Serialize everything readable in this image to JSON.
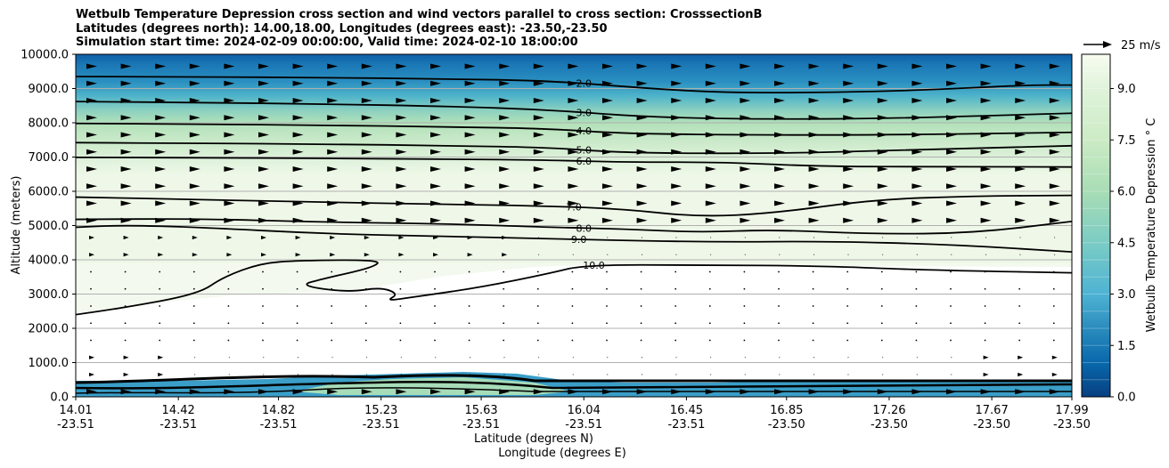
{
  "chart_data": {
    "type": "heatmap",
    "title_lines": [
      "Wetbulb Temperature Depression cross section and wind vectors parallel to cross section: CrosssectionB",
      "Latitudes (degrees north): 14.00,18.00, Longitudes (degrees east): -23.50,-23.50",
      "Simulation start time: 2024-02-09 00:00:00, Valid time: 2024-02-10 18:00:00"
    ],
    "xlabel": "Latitude (degrees N)",
    "xlabel2": "Longitude (degrees E)",
    "ylabel": "Altitude (meters)",
    "x_ticks": [
      {
        "lat": "14.01",
        "lon": "-23.51"
      },
      {
        "lat": "14.42",
        "lon": "-23.51"
      },
      {
        "lat": "14.82",
        "lon": "-23.51"
      },
      {
        "lat": "15.23",
        "lon": "-23.51"
      },
      {
        "lat": "15.63",
        "lon": "-23.51"
      },
      {
        "lat": "16.04",
        "lon": "-23.51"
      },
      {
        "lat": "16.45",
        "lon": "-23.51"
      },
      {
        "lat": "16.85",
        "lon": "-23.50"
      },
      {
        "lat": "17.26",
        "lon": "-23.50"
      },
      {
        "lat": "17.67",
        "lon": "-23.50"
      },
      {
        "lat": "17.99",
        "lon": "-23.50"
      }
    ],
    "xlim": [
      14.01,
      17.99
    ],
    "ylim": [
      0,
      10000
    ],
    "y_ticks": [
      "0.0",
      "1000.0",
      "2000.0",
      "3000.0",
      "4000.0",
      "5000.0",
      "6000.0",
      "7000.0",
      "8000.0",
      "9000.0",
      "10000.0"
    ],
    "grid": true,
    "colorbar": {
      "label": "Wetbulb Temperature Depression ° C",
      "ticks": [
        "0.0",
        "1.5",
        "3.0",
        "4.5",
        "6.0",
        "7.5",
        "9.0"
      ],
      "range": [
        0,
        10
      ],
      "colormap": "GnBu_r"
    },
    "wind_key": {
      "label": "25 m/s"
    },
    "contour_labels": [
      "2.0",
      "3.0",
      "4.0",
      "5.0",
      "6.0",
      "7.0",
      "8.0",
      "9.0",
      "10.0"
    ],
    "contours": [
      {
        "level": "2.0",
        "points": [
          [
            14.01,
            9350
          ],
          [
            14.5,
            9340
          ],
          [
            15.0,
            9320
          ],
          [
            15.5,
            9280
          ],
          [
            15.9,
            9230
          ],
          [
            16.3,
            9000
          ],
          [
            16.6,
            8880
          ],
          [
            17.0,
            8880
          ],
          [
            17.4,
            8950
          ],
          [
            17.8,
            9100
          ],
          [
            17.99,
            9100
          ]
        ]
      },
      {
        "level": "3.0",
        "points": [
          [
            14.01,
            8620
          ],
          [
            14.5,
            8590
          ],
          [
            15.0,
            8550
          ],
          [
            15.5,
            8480
          ],
          [
            15.9,
            8380
          ],
          [
            16.3,
            8160
          ],
          [
            16.8,
            8100
          ],
          [
            17.3,
            8130
          ],
          [
            17.99,
            8280
          ]
        ]
      },
      {
        "level": "4.0",
        "points": [
          [
            14.01,
            7980
          ],
          [
            14.5,
            7960
          ],
          [
            15.0,
            7930
          ],
          [
            15.5,
            7880
          ],
          [
            15.9,
            7830
          ],
          [
            16.2,
            7680
          ],
          [
            16.8,
            7640
          ],
          [
            17.3,
            7650
          ],
          [
            17.99,
            7720
          ]
        ]
      },
      {
        "level": "5.0",
        "points": [
          [
            14.01,
            7420
          ],
          [
            14.5,
            7400
          ],
          [
            15.0,
            7380
          ],
          [
            15.5,
            7330
          ],
          [
            15.9,
            7280
          ],
          [
            16.2,
            7120
          ],
          [
            16.8,
            7100
          ],
          [
            17.3,
            7200
          ],
          [
            17.99,
            7330
          ]
        ]
      },
      {
        "level": "6.0",
        "points": [
          [
            14.01,
            6990
          ],
          [
            14.5,
            6980
          ],
          [
            15.0,
            6960
          ],
          [
            15.5,
            6940
          ],
          [
            15.9,
            6910
          ],
          [
            16.2,
            6850
          ],
          [
            16.6,
            6850
          ],
          [
            17.0,
            6720
          ],
          [
            17.5,
            6720
          ],
          [
            17.99,
            6710
          ]
        ]
      },
      {
        "level": "7.0",
        "points": [
          [
            14.01,
            5830
          ],
          [
            14.5,
            5760
          ],
          [
            15.0,
            5680
          ],
          [
            15.5,
            5620
          ],
          [
            15.9,
            5570
          ],
          [
            16.2,
            5480
          ],
          [
            16.5,
            5250
          ],
          [
            16.8,
            5360
          ],
          [
            17.2,
            5760
          ],
          [
            17.6,
            5860
          ],
          [
            17.99,
            5880
          ]
        ]
      },
      {
        "level": "8.0",
        "points": [
          [
            14.01,
            5180
          ],
          [
            14.5,
            5200
          ],
          [
            15.0,
            5100
          ],
          [
            15.5,
            5050
          ],
          [
            15.9,
            4950
          ],
          [
            16.2,
            4900
          ],
          [
            16.5,
            4800
          ],
          [
            16.8,
            4880
          ],
          [
            17.2,
            4750
          ],
          [
            17.6,
            4780
          ],
          [
            17.99,
            5120
          ]
        ]
      },
      {
        "level": "9.0",
        "points": [
          [
            14.01,
            4950
          ],
          [
            14.2,
            5010
          ],
          [
            14.5,
            4950
          ],
          [
            15.0,
            4760
          ],
          [
            15.5,
            4680
          ],
          [
            15.9,
            4620
          ],
          [
            16.2,
            4560
          ],
          [
            16.6,
            4520
          ],
          [
            17.0,
            4540
          ],
          [
            17.5,
            4450
          ],
          [
            17.99,
            4230
          ]
        ]
      },
      {
        "level": "10.0",
        "points": [
          [
            14.01,
            2400
          ],
          [
            14.2,
            2600
          ],
          [
            14.5,
            3000
          ],
          [
            14.6,
            3500
          ],
          [
            14.75,
            3900
          ],
          [
            14.9,
            3980
          ],
          [
            15.23,
            4000
          ],
          [
            15.2,
            3780
          ],
          [
            15.0,
            3450
          ],
          [
            14.9,
            3250
          ],
          [
            15.1,
            3050
          ],
          [
            15.23,
            3200
          ],
          [
            15.3,
            3000
          ],
          [
            15.25,
            2800
          ],
          [
            15.35,
            2900
          ],
          [
            15.63,
            3200
          ],
          [
            15.9,
            3600
          ],
          [
            16.04,
            3850
          ],
          [
            16.5,
            3850
          ],
          [
            17.0,
            3820
          ],
          [
            17.4,
            3700
          ],
          [
            17.99,
            3620
          ]
        ]
      }
    ]
  }
}
